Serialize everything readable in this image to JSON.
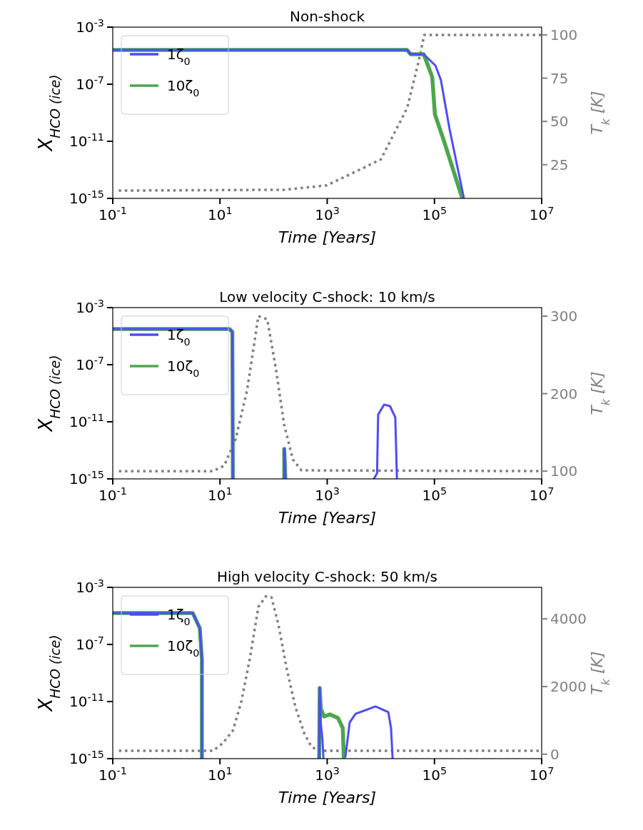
{
  "chart_data": [
    {
      "type": "line",
      "title": "Non-shock",
      "xlabel": "Time [Years]",
      "ylabel": "X$_{HCO (ice)}$",
      "y2label": "T$_{k}$ [K]",
      "log": "xy",
      "xlim": [
        0.1,
        10000000
      ],
      "xticks": [
        {
          "value": 0.1,
          "label": "10$^{-1}$"
        },
        {
          "value": 10,
          "label": "10$^{1}$"
        },
        {
          "value": 1000,
          "label": "10$^{3}$"
        },
        {
          "value": 100000,
          "label": "10$^{5}$"
        },
        {
          "value": 10000000,
          "label": "10$^{7}$"
        }
      ],
      "ylim": [
        1e-15,
        0.001
      ],
      "yticks": [
        {
          "value": 1e-15,
          "label": "10$^{-15}$"
        },
        {
          "value": 1e-11,
          "label": "10$^{-11}$"
        },
        {
          "value": 1e-07,
          "label": "10$^{-7}$"
        },
        {
          "value": 0.001,
          "label": "10$^{-3}$"
        }
      ],
      "y2lim": [
        5.5,
        104.5
      ],
      "y2ticks": [
        25,
        50,
        75,
        100
      ],
      "legend": "top left",
      "grid": false,
      "marker": "none",
      "series": [
        {
          "name": "1ζ$_{0}$",
          "color": "#4c4cff",
          "x": [
            0.1,
            30900,
            36000,
            63100,
            104700,
            131800,
            190500,
            354800
          ],
          "values": [
            2.5e-05,
            2.5e-05,
            1.26e-05,
            1.26e-05,
            2e-06,
            2e-07,
            7.9e-11,
            1e-15
          ]
        },
        {
          "name": "10ζ$_{0}$",
          "color": "#4ca64c",
          "x": [
            0.1,
            30900,
            36000,
            63100,
            91000,
            102000,
            148000,
            331000
          ],
          "values": [
            2.5e-05,
            2.5e-05,
            1.26e-05,
            1.26e-05,
            3.2e-07,
            7.9e-10,
            1.26e-11,
            1e-15
          ]
        },
        {
          "axis": "y2",
          "color": "#808080",
          "line_style": "dotted",
          "x": [
            0.129,
            158,
            977,
            3390,
            10000,
            30900,
            50100,
            64600,
            10000000
          ],
          "values": [
            10,
            10.5,
            13,
            21,
            28,
            57.6,
            84,
            100,
            100
          ]
        }
      ]
    },
    {
      "type": "line",
      "title": "Low velocity C-shock: 10 km/s",
      "xlabel": "Time [Years]",
      "ylabel": "X$_{HCO (ice)}$",
      "y2label": "T$_{k}$ [K]",
      "log": "xy",
      "xlim": [
        0.1,
        10000000
      ],
      "xticks": [
        {
          "value": 0.1,
          "label": "10$^{-1}$"
        },
        {
          "value": 10,
          "label": "10$^{1}$"
        },
        {
          "value": 1000,
          "label": "10$^{3}$"
        },
        {
          "value": 100000,
          "label": "10$^{5}$"
        },
        {
          "value": 10000000,
          "label": "10$^{7}$"
        }
      ],
      "ylim": [
        1e-15,
        0.001
      ],
      "yticks": [
        {
          "value": 1e-15,
          "label": "10$^{-15}$"
        },
        {
          "value": 1e-11,
          "label": "10$^{-11}$"
        },
        {
          "value": 1e-07,
          "label": "10$^{-7}$"
        },
        {
          "value": 0.001,
          "label": "10$^{-3}$"
        }
      ],
      "y2lim": [
        90,
        311
      ],
      "y2ticks": [
        100,
        200,
        300
      ],
      "legend": "top left",
      "grid": false,
      "marker": "none",
      "series": [
        {
          "name": "1ζ$_{0}$",
          "color": "#4c4cff",
          "x": [
            0.1,
            15,
            17,
            17.4,
            50,
            158,
            158,
            166,
            1000,
            7413,
            8511,
            8913,
            11482,
            14791,
            18621,
            19953
          ],
          "values": [
            3.2e-05,
            3.2e-05,
            2e-05,
            1e-15,
            null,
            1e-15,
            1.26e-13,
            1e-15,
            null,
            1e-15,
            2.5e-15,
            3.2e-11,
            1.6e-10,
            1.26e-10,
            2e-11,
            1e-15
          ]
        },
        {
          "name": "10ζ$_{0}$",
          "color": "#4ca64c",
          "x": [
            0.1,
            15,
            17,
            17.4,
            50,
            158,
            158,
            166
          ],
          "values": [
            3.2e-05,
            3.2e-05,
            2e-05,
            1e-15,
            null,
            1e-15,
            1.26e-13,
            1e-15
          ]
        },
        {
          "axis": "y2",
          "color": "#808080",
          "line_style": "dotted",
          "x": [
            0.13,
            7.4,
            12,
            19.5,
            32,
            52,
            76,
            110,
            158,
            229,
            331,
            10000000
          ],
          "values": [
            100,
            100,
            107,
            141,
            204,
            300,
            296,
            233,
            159,
            115,
            101,
            100
          ]
        }
      ]
    },
    {
      "type": "line",
      "title": "High velocity C-shock: 50 km/s",
      "xlabel": "Time [Years]",
      "ylabel": "X$_{HCO (ice)}$",
      "y2label": "T$_{k}$ [K]",
      "log": "xy",
      "xlim": [
        0.1,
        10000000
      ],
      "xticks": [
        {
          "value": 0.1,
          "label": "10$^{-1}$"
        },
        {
          "value": 10,
          "label": "10$^{1}$"
        },
        {
          "value": 1000,
          "label": "10$^{3}$"
        },
        {
          "value": 100000,
          "label": "10$^{5}$"
        },
        {
          "value": 10000000,
          "label": "10$^{7}$"
        }
      ],
      "ylim": [
        1e-15,
        0.001
      ],
      "yticks": [
        {
          "value": 1e-15,
          "label": "10$^{-15}$"
        },
        {
          "value": 1e-11,
          "label": "10$^{-11}$"
        },
        {
          "value": 1e-07,
          "label": "10$^{-7}$"
        },
        {
          "value": 0.001,
          "label": "10$^{-3}$"
        }
      ],
      "y2lim": [
        -130,
        4930
      ],
      "y2ticks": [
        0,
        2000,
        4000
      ],
      "legend": "top left",
      "grid": false,
      "marker": "none",
      "series": [
        {
          "name": "1ζ$_{0}$",
          "color": "#4c4cff",
          "x": [
            0.1,
            3.1,
            4.2,
            4.6,
            4.6,
            100,
            708,
            724,
            759,
            813,
            851,
            1000,
            2188,
            2630,
            3388,
            7943,
            13800,
            15488,
            16596
          ],
          "values": [
            1.6e-05,
            1.6e-05,
            1.4e-06,
            8.9e-09,
            1e-15,
            null,
            1e-15,
            8.9e-11,
            3.2e-13,
            2.2e-14,
            1e-15,
            null,
            1.4e-15,
            3.5e-13,
            1.4e-12,
            4.5e-12,
            1.8e-12,
            1.4e-13,
            1e-15
          ]
        },
        {
          "name": "10ζ$_{0}$",
          "color": "#4ca64c",
          "x": [
            0.1,
            3.1,
            4.2,
            4.6,
            4.6,
            100,
            708,
            724,
            759,
            871,
            1122,
            1585,
            1950,
            2042
          ],
          "values": [
            1.6e-05,
            1.6e-05,
            1.4e-06,
            8.9e-09,
            1e-15,
            null,
            1e-15,
            8.9e-11,
            3.2e-12,
            8.9e-13,
            1.26e-12,
            7.1e-13,
            1.4e-13,
            1e-15
          ]
        },
        {
          "axis": "y2",
          "color": "#808080",
          "line_style": "dotted",
          "x": [
            0.13,
            7.4,
            11.2,
            17.4,
            25,
            36,
            52,
            71,
            91,
            123,
            178,
            257,
            372,
            501,
            676,
            10000000
          ],
          "values": [
            100,
            100,
            320,
            700,
            1550,
            2820,
            4350,
            4660,
            4640,
            3830,
            2480,
            1380,
            620,
            240,
            100,
            100
          ]
        }
      ]
    }
  ]
}
